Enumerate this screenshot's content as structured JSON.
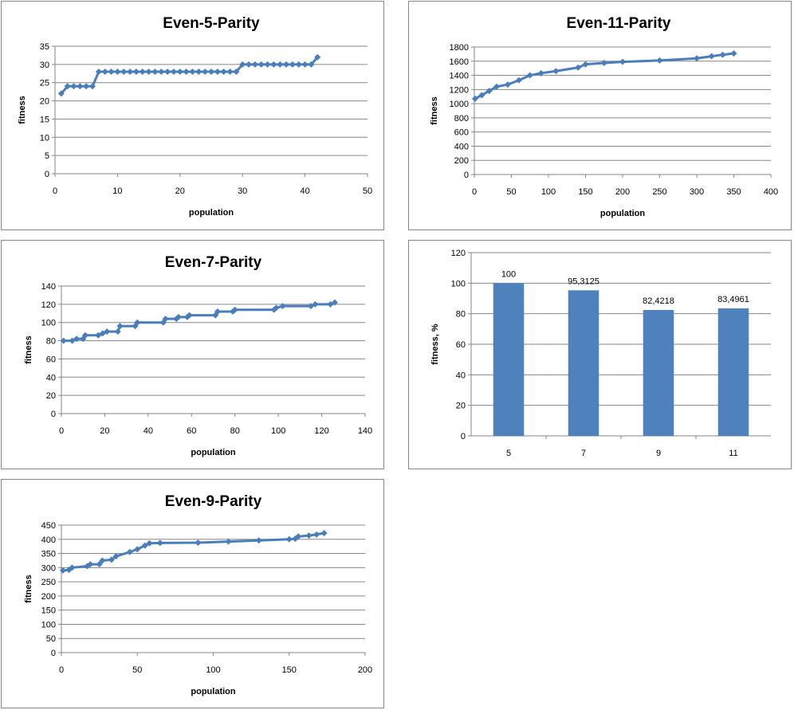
{
  "chart_data": [
    {
      "id": "even5",
      "type": "line",
      "title": "Even-5-Parity",
      "xlabel": "population",
      "ylabel": "fitness",
      "xlim": [
        0,
        50
      ],
      "xstep": 10,
      "ylim": [
        0,
        35
      ],
      "ystep": 5,
      "xticks": [
        "0",
        "10",
        "20",
        "30",
        "40",
        "50"
      ],
      "yticks": [
        "0",
        "5",
        "10",
        "15",
        "20",
        "25",
        "30",
        "35"
      ],
      "grid": true,
      "color": "#4a7ebb",
      "points": [
        [
          1,
          22
        ],
        [
          2,
          24
        ],
        [
          3,
          24
        ],
        [
          4,
          24
        ],
        [
          5,
          24
        ],
        [
          6,
          24
        ],
        [
          7,
          28
        ],
        [
          8,
          28
        ],
        [
          9,
          28
        ],
        [
          10,
          28
        ],
        [
          11,
          28
        ],
        [
          12,
          28
        ],
        [
          13,
          28
        ],
        [
          14,
          28
        ],
        [
          15,
          28
        ],
        [
          16,
          28
        ],
        [
          17,
          28
        ],
        [
          18,
          28
        ],
        [
          19,
          28
        ],
        [
          20,
          28
        ],
        [
          21,
          28
        ],
        [
          22,
          28
        ],
        [
          23,
          28
        ],
        [
          24,
          28
        ],
        [
          25,
          28
        ],
        [
          26,
          28
        ],
        [
          27,
          28
        ],
        [
          28,
          28
        ],
        [
          29,
          28
        ],
        [
          30,
          30
        ],
        [
          31,
          30
        ],
        [
          32,
          30
        ],
        [
          33,
          30
        ],
        [
          34,
          30
        ],
        [
          35,
          30
        ],
        [
          36,
          30
        ],
        [
          37,
          30
        ],
        [
          38,
          30
        ],
        [
          39,
          30
        ],
        [
          40,
          30
        ],
        [
          41,
          30
        ],
        [
          42,
          32
        ]
      ]
    },
    {
      "id": "even11",
      "type": "line",
      "title": "Even-11-Parity",
      "xlabel": "population",
      "ylabel": "fitness",
      "xlim": [
        0,
        400
      ],
      "xstep": 50,
      "ylim": [
        0,
        1800
      ],
      "ystep": 200,
      "xticks": [
        "0",
        "50",
        "100",
        "150",
        "200",
        "250",
        "300",
        "350",
        "400"
      ],
      "yticks": [
        "0",
        "200",
        "400",
        "600",
        "800",
        "1000",
        "1200",
        "1400",
        "1600",
        "1800"
      ],
      "grid": true,
      "color": "#4a7ebb",
      "points": [
        [
          1,
          1070
        ],
        [
          10,
          1120
        ],
        [
          20,
          1180
        ],
        [
          30,
          1240
        ],
        [
          45,
          1270
        ],
        [
          60,
          1330
        ],
        [
          75,
          1400
        ],
        [
          90,
          1430
        ],
        [
          110,
          1460
        ],
        [
          140,
          1510
        ],
        [
          150,
          1555
        ],
        [
          175,
          1575
        ],
        [
          200,
          1590
        ],
        [
          250,
          1610
        ],
        [
          300,
          1640
        ],
        [
          320,
          1670
        ],
        [
          335,
          1690
        ],
        [
          350,
          1710
        ]
      ]
    },
    {
      "id": "even7",
      "type": "line",
      "title": "Even-7-Parity",
      "xlabel": "population",
      "ylabel": "fitness",
      "xlim": [
        0,
        140
      ],
      "xstep": 20,
      "ylim": [
        0,
        140
      ],
      "ystep": 20,
      "xticks": [
        "0",
        "20",
        "40",
        "60",
        "80",
        "100",
        "120",
        "140"
      ],
      "yticks": [
        "0",
        "20",
        "40",
        "60",
        "80",
        "100",
        "120",
        "140"
      ],
      "grid": true,
      "color": "#4a7ebb",
      "points": [
        [
          1,
          80
        ],
        [
          5,
          80
        ],
        [
          7,
          82
        ],
        [
          10,
          82
        ],
        [
          11,
          86
        ],
        [
          17,
          86
        ],
        [
          19,
          88
        ],
        [
          21,
          90
        ],
        [
          26,
          90
        ],
        [
          27,
          96
        ],
        [
          34,
          96
        ],
        [
          35,
          100
        ],
        [
          47,
          100
        ],
        [
          48,
          104
        ],
        [
          53,
          104
        ],
        [
          54,
          106
        ],
        [
          58,
          106
        ],
        [
          59,
          108
        ],
        [
          71,
          108
        ],
        [
          72,
          112
        ],
        [
          79,
          112
        ],
        [
          80,
          114
        ],
        [
          98,
          114
        ],
        [
          99,
          116
        ],
        [
          102,
          118
        ],
        [
          115,
          118
        ],
        [
          117,
          120
        ],
        [
          124,
          120
        ],
        [
          126,
          122
        ]
      ]
    },
    {
      "id": "fitness-bar",
      "type": "bar",
      "title": "",
      "xlabel": "",
      "ylabel": "fitness, %",
      "ylim": [
        0,
        120
      ],
      "ystep": 20,
      "yticks": [
        "0",
        "20",
        "40",
        "60",
        "80",
        "100",
        "120"
      ],
      "categories": [
        "5",
        "7",
        "9",
        "11"
      ],
      "values": [
        100,
        95.3125,
        82.4218,
        83.4961
      ],
      "data_labels": [
        "100",
        "95,3125",
        "82,4218",
        "83,4961"
      ],
      "grid": true,
      "color": "#4f81bd"
    },
    {
      "id": "even9",
      "type": "line",
      "title": "Even-9-Parity",
      "xlabel": "population",
      "ylabel": "fitness",
      "xlim": [
        0,
        200
      ],
      "xstep": 50,
      "ylim": [
        0,
        450
      ],
      "ystep": 50,
      "xticks": [
        "0",
        "50",
        "100",
        "150",
        "200"
      ],
      "yticks": [
        "0",
        "50",
        "100",
        "150",
        "200",
        "250",
        "300",
        "350",
        "400",
        "450"
      ],
      "grid": true,
      "color": "#4a7ebb",
      "points": [
        [
          1,
          290
        ],
        [
          5,
          292
        ],
        [
          7,
          300
        ],
        [
          17,
          305
        ],
        [
          19,
          312
        ],
        [
          25,
          312
        ],
        [
          27,
          325
        ],
        [
          33,
          328
        ],
        [
          36,
          340
        ],
        [
          45,
          355
        ],
        [
          50,
          365
        ],
        [
          55,
          378
        ],
        [
          58,
          386
        ],
        [
          65,
          387
        ],
        [
          90,
          388
        ],
        [
          110,
          392
        ],
        [
          130,
          396
        ],
        [
          150,
          400
        ],
        [
          154,
          402
        ],
        [
          156,
          410
        ],
        [
          163,
          413
        ],
        [
          168,
          417
        ],
        [
          173,
          422
        ]
      ]
    }
  ]
}
